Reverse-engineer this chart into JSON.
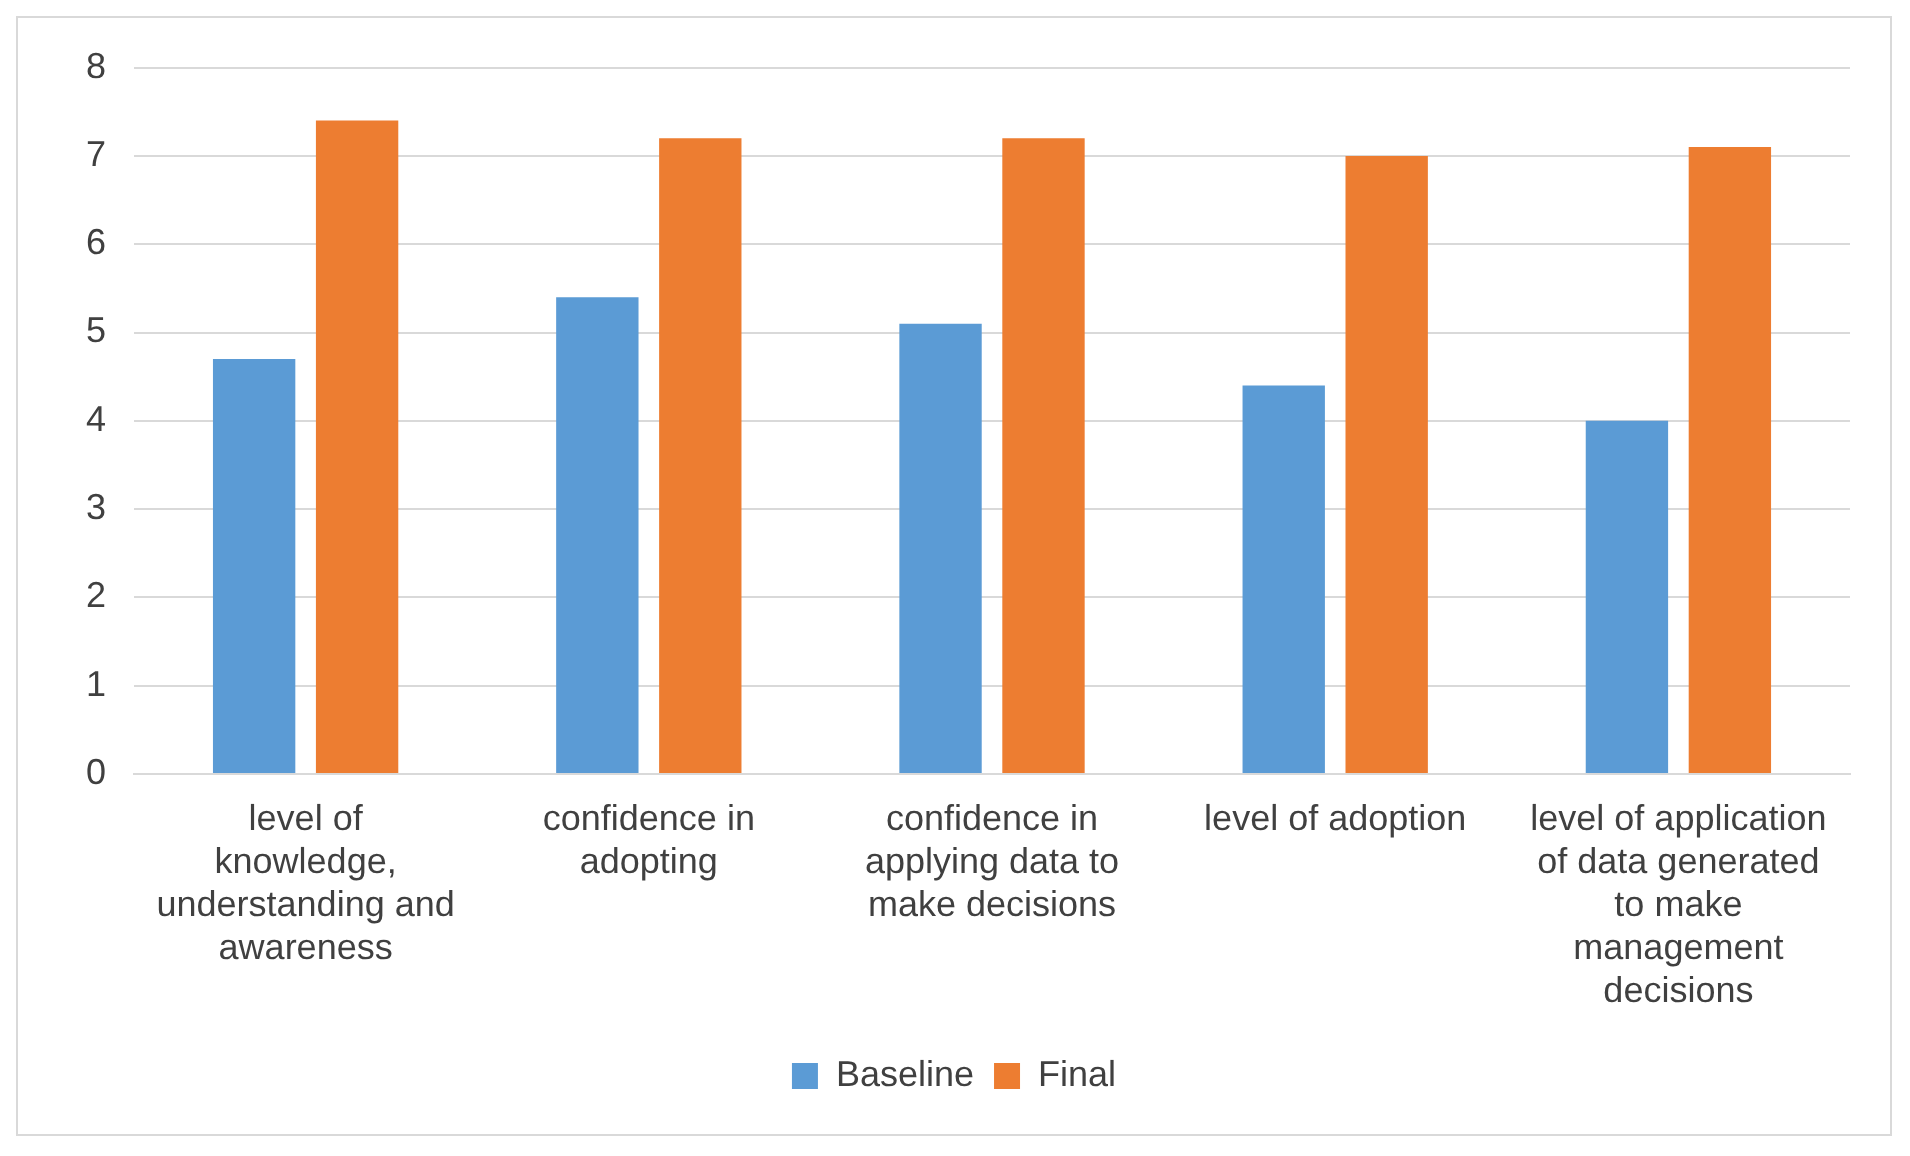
{
  "chart_data": {
    "type": "bar",
    "categories": [
      "level of knowledge, understanding and awareness",
      "confidence in adopting",
      "confidence in applying data to make decisions",
      "level of adoption",
      "level of application of data generated to make management decisions"
    ],
    "series": [
      {
        "name": "Baseline",
        "color": "#5b9bd5",
        "values": [
          4.7,
          5.4,
          5.1,
          4.4,
          4.0
        ]
      },
      {
        "name": "Final",
        "color": "#ed7d31",
        "values": [
          7.4,
          7.2,
          7.2,
          7.0,
          7.1
        ]
      }
    ],
    "ylim": [
      0,
      8
    ],
    "yticks": [
      0,
      1,
      2,
      3,
      4,
      5,
      6,
      7,
      8
    ],
    "grid": "y",
    "legend": "bottom"
  }
}
